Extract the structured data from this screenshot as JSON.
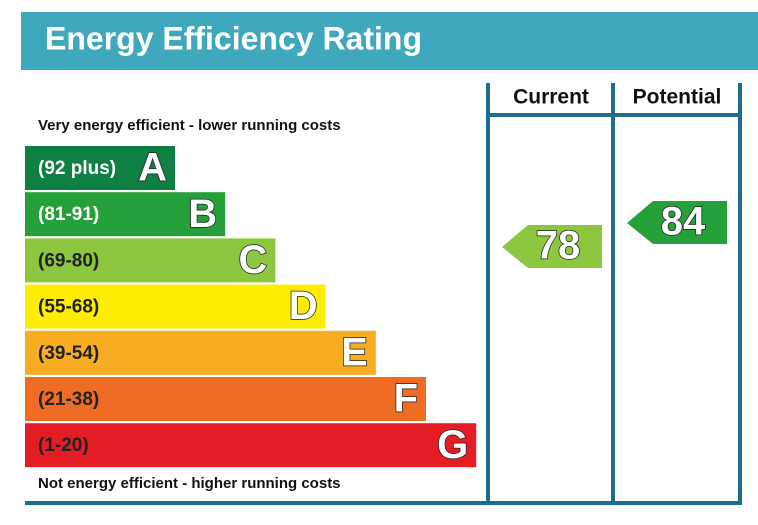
{
  "title": "Energy Efficiency Rating",
  "columns": [
    "Current",
    "Potential"
  ],
  "top_note": "Very energy efficient - lower running costs",
  "bottom_note": "Not energy efficient - higher running costs",
  "bands": [
    {
      "range": "(92 plus)",
      "letter": "A",
      "color": "#0f8043",
      "text_color": "#ffffff"
    },
    {
      "range": "(81-91)",
      "letter": "B",
      "color": "#26a03a",
      "text_color": "#ffffff"
    },
    {
      "range": "(69-80)",
      "letter": "C",
      "color": "#8dc63f",
      "text_color": "#222222"
    },
    {
      "range": "(55-68)",
      "letter": "D",
      "color": "#ffed00",
      "text_color": "#222222"
    },
    {
      "range": "(39-54)",
      "letter": "E",
      "color": "#f7ac22",
      "text_color": "#222222"
    },
    {
      "range": "(21-38)",
      "letter": "F",
      "color": "#ef6c24",
      "text_color": "#222222"
    },
    {
      "range": "(1-20)",
      "letter": "G",
      "color": "#e31d23",
      "text_color": "#222222"
    }
  ],
  "current": {
    "value": "78",
    "color": "#8dc63f"
  },
  "potential": {
    "value": "84",
    "color": "#26a03a"
  }
}
